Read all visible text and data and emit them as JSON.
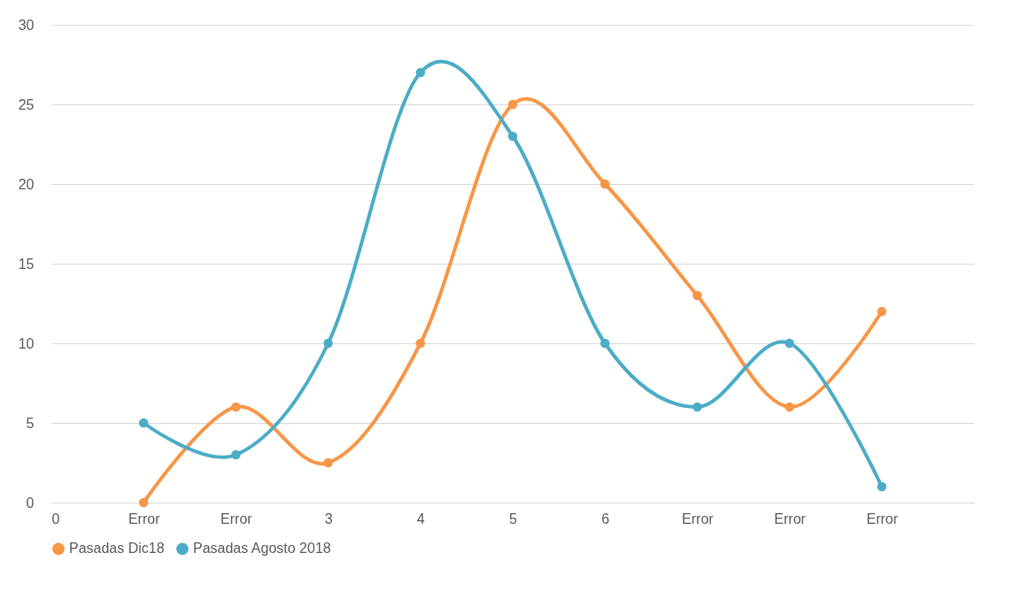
{
  "chart_data": {
    "type": "line",
    "x": [
      1,
      2,
      3,
      4,
      5,
      6,
      7,
      8,
      9
    ],
    "series": [
      {
        "name": "Pasadas Dic18",
        "color": "#f79646",
        "values": [
          0,
          6,
          2.5,
          10,
          25,
          20,
          13,
          6,
          12
        ]
      },
      {
        "name": "Pasadas Agosto 2018",
        "color": "#4bacc6",
        "values": [
          5,
          3,
          10,
          27,
          23,
          10,
          6,
          10,
          1
        ]
      }
    ],
    "xlim": [
      0,
      10
    ],
    "xticks": [
      0,
      {
        "value": 1,
        "label": "Error"
      },
      {
        "value": 2,
        "label": "Error"
      },
      3,
      4,
      5,
      6,
      {
        "value": 7,
        "label": "Error"
      },
      {
        "value": 8,
        "label": "Error"
      },
      {
        "value": 9,
        "label": "Error"
      }
    ],
    "ylim": [
      0,
      30
    ],
    "yticks": [
      0,
      5,
      10,
      15,
      20,
      25,
      30
    ],
    "grid": "y",
    "legend": "bottom",
    "marker": "circle",
    "line_style": "solid"
  }
}
